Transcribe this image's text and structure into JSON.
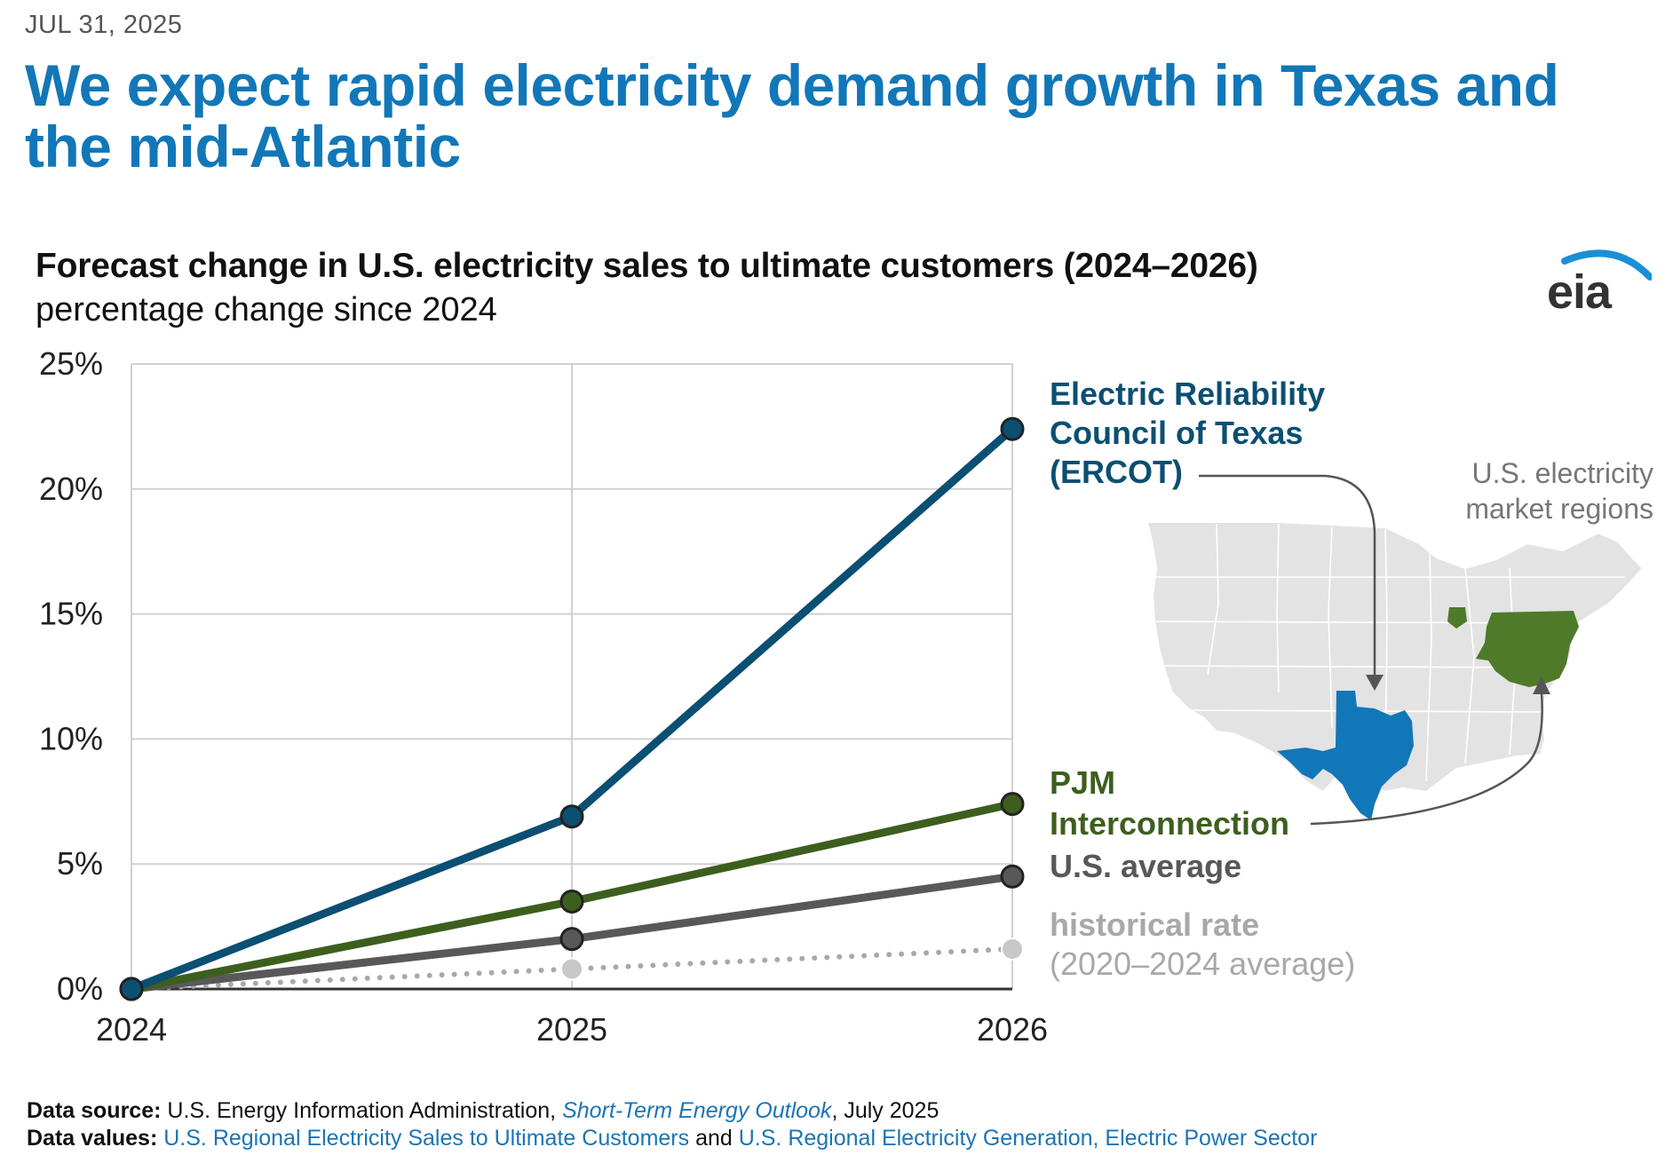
{
  "date": "JUL 31, 2025",
  "headline": "We expect rapid electricity demand growth in Texas and the mid-Atlantic",
  "logo_text": "eia",
  "colors": {
    "headline": "#1277b8",
    "ercot": "#0b4f73",
    "ercot_map": "#1277b8",
    "pjm": "#3d5f1e",
    "pjm_map": "#4e7a2a",
    "us_average": "#58585b",
    "historical": "#a8a8a8",
    "grid": "#d0d0d0"
  },
  "chart_data": {
    "type": "line",
    "title": "Forecast change in U.S. electricity sales to ultimate customers (2024–2026)",
    "subtitle": "percentage change since 2024",
    "xlabel": "",
    "ylabel": "percentage change since 2024",
    "categories": [
      "2024",
      "2025",
      "2026"
    ],
    "ylim": [
      0,
      25
    ],
    "yticks": [
      "0%",
      "5%",
      "10%",
      "15%",
      "20%",
      "25%"
    ],
    "ytick_values": [
      0,
      5,
      10,
      15,
      20,
      25
    ],
    "grid": true,
    "series": [
      {
        "name": "historical rate (2020–2024 average)",
        "key": "historical",
        "values": [
          0,
          0.8,
          1.6
        ],
        "style": "dotted"
      },
      {
        "name": "U.S. average",
        "key": "us_average",
        "values": [
          0,
          2.0,
          4.5
        ],
        "style": "solid"
      },
      {
        "name": "PJM Interconnection",
        "key": "pjm",
        "values": [
          0,
          3.5,
          7.4
        ],
        "style": "solid"
      },
      {
        "name": "Electric Reliability Council of Texas (ERCOT)",
        "key": "ercot",
        "values": [
          0,
          6.9,
          22.4
        ],
        "style": "solid"
      }
    ],
    "labels": {
      "ercot": [
        "Electric Reliability",
        "Council of Texas",
        "(ERCOT)"
      ],
      "pjm": [
        "PJM",
        "Interconnection"
      ],
      "us_average": [
        "U.S. average"
      ],
      "historical": [
        "historical rate",
        "(2020–2024 average)"
      ]
    }
  },
  "map": {
    "caption": [
      "U.S. electricity",
      "market regions"
    ]
  },
  "footer": {
    "source_label": "Data source:",
    "source_text": "U.S. Energy Information Administration,",
    "source_link": "Short-Term Energy Outlook",
    "source_date": ", July 2025",
    "values_label": "Data values:",
    "values_link1": "U.S. Regional Electricity Sales to Ultimate Customers",
    "values_and": "and",
    "values_link2": "U.S. Regional Electricity Generation, Electric Power Sector"
  }
}
